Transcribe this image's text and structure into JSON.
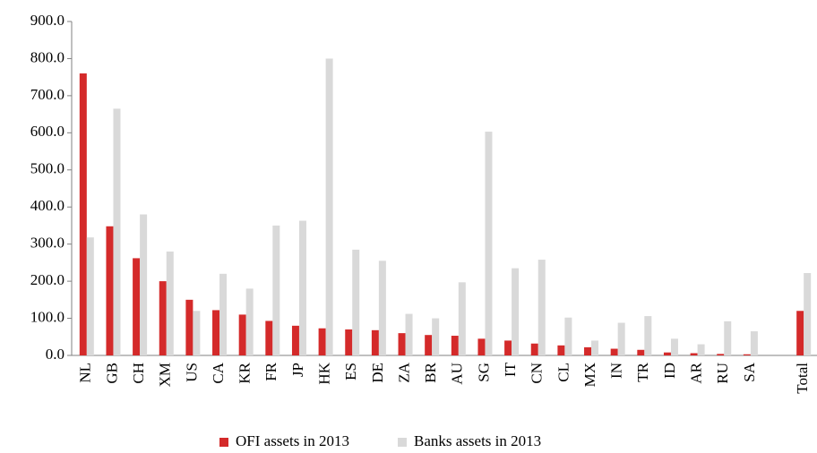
{
  "chart_data": {
    "type": "bar",
    "categories": [
      "NL",
      "GB",
      "CH",
      "XM",
      "US",
      "CA",
      "KR",
      "FR",
      "JP",
      "HK",
      "ES",
      "DE",
      "ZA",
      "BR",
      "AU",
      "SG",
      "IT",
      "CN",
      "CL",
      "MX",
      "IN",
      "TR",
      "ID",
      "AR",
      "RU",
      "SA",
      null,
      "Total"
    ],
    "series": [
      {
        "name": "OFI assets in 2013",
        "color": "#d42a2a",
        "values": [
          760,
          348,
          262,
          200,
          150,
          122,
          110,
          93,
          80,
          73,
          70,
          68,
          60,
          55,
          53,
          45,
          40,
          32,
          27,
          22,
          18,
          15,
          8,
          6,
          4,
          3,
          null,
          120
        ]
      },
      {
        "name": "Banks assets in 2013",
        "color": "#d9d9d9",
        "values": [
          318,
          665,
          380,
          280,
          120,
          220,
          180,
          350,
          363,
          800,
          285,
          255,
          112,
          100,
          197,
          603,
          235,
          258,
          102,
          40,
          88,
          106,
          45,
          30,
          92,
          65,
          null,
          222
        ]
      }
    ],
    "ylim": [
      0,
      900
    ],
    "yticks": [
      {
        "value": 0,
        "label": "0.0"
      },
      {
        "value": 100,
        "label": "100.0"
      },
      {
        "value": 200,
        "label": "200.0"
      },
      {
        "value": 300,
        "label": "300.0"
      },
      {
        "value": 400,
        "label": "400.0"
      },
      {
        "value": 500,
        "label": "500.0"
      },
      {
        "value": 600,
        "label": "600.0"
      },
      {
        "value": 700,
        "label": "700.0"
      },
      {
        "value": 800,
        "label": "800.0"
      },
      {
        "value": 900,
        "label": "900.0"
      }
    ],
    "grid": false,
    "legend": "bottom"
  }
}
